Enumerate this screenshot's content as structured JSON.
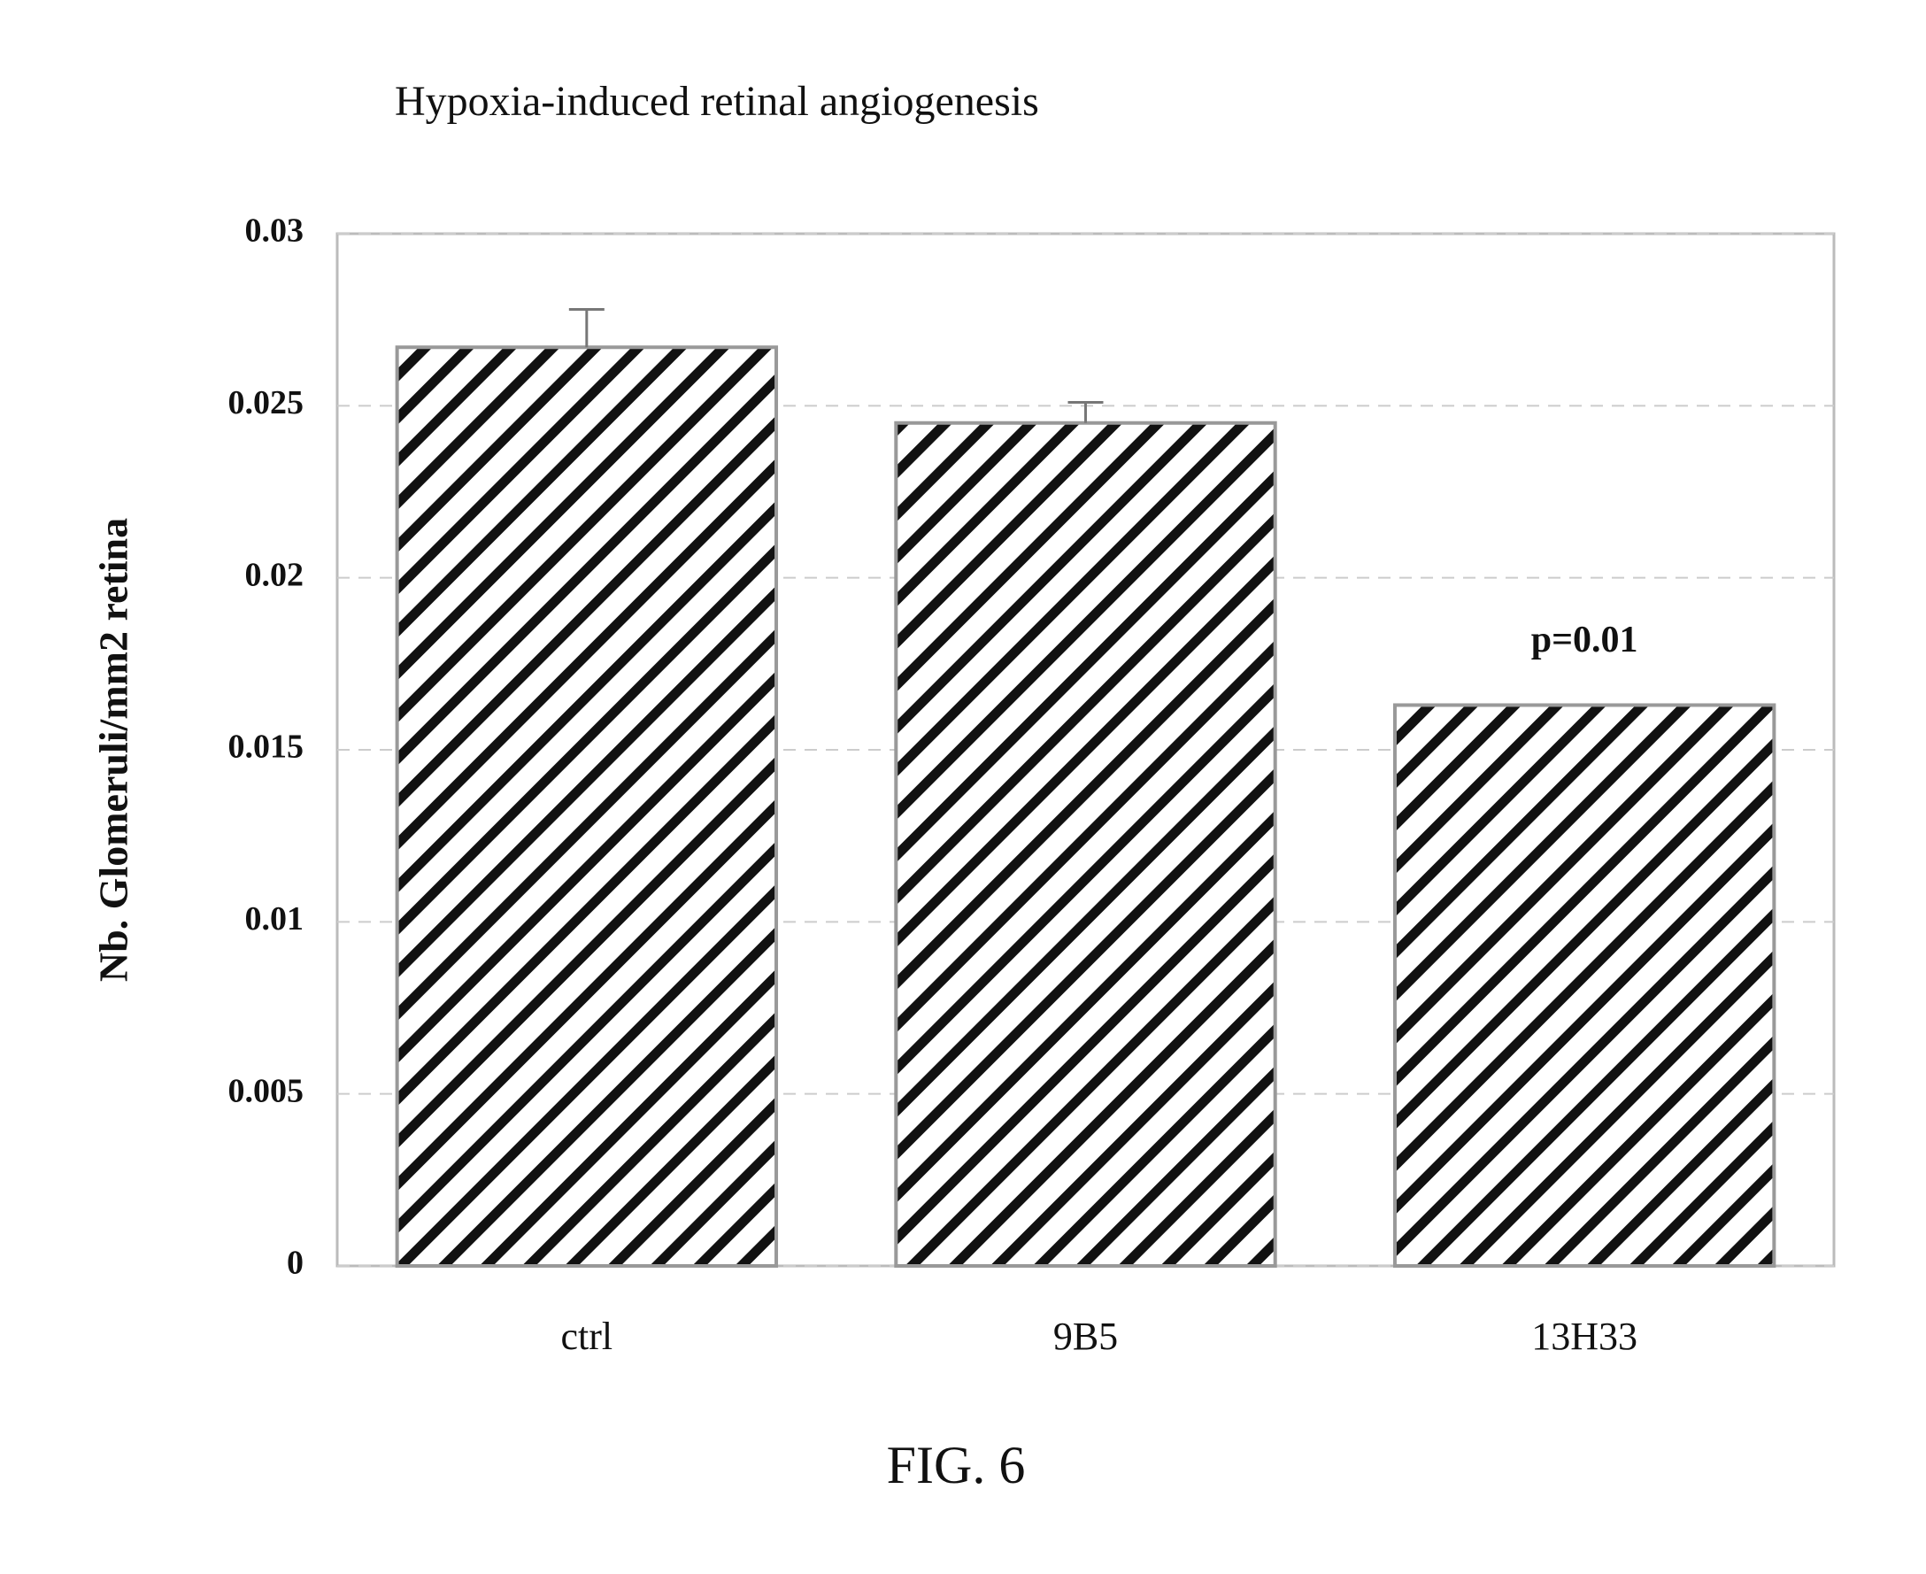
{
  "chart_data": {
    "type": "bar",
    "title": "Hypoxia-induced retinal angiogenesis",
    "ylabel": "Nb. Glomeruli/mm2 retina",
    "caption": "FIG. 6",
    "categories": [
      "ctrl",
      "9B5",
      "13H33"
    ],
    "values": [
      0.0267,
      0.0245,
      0.0163
    ],
    "errors": [
      0.0011,
      0.0006,
      null
    ],
    "annotation": "p=0.01",
    "color": "#111111",
    "ylim": [
      0,
      0.03
    ],
    "yticks": [
      0,
      0.005,
      0.01,
      0.015,
      0.02,
      0.025,
      0.03
    ],
    "grid": true
  }
}
